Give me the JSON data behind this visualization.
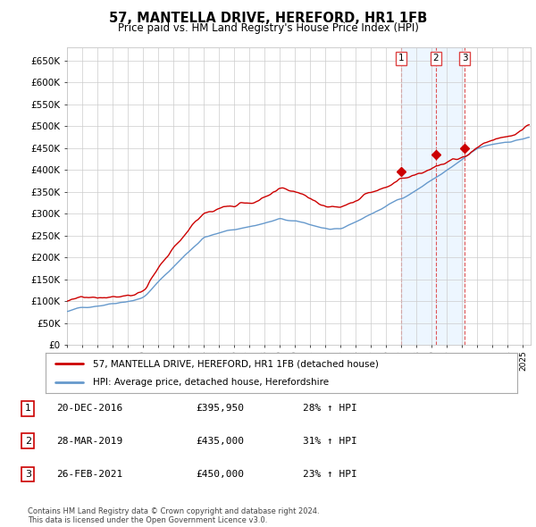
{
  "title": "57, MANTELLA DRIVE, HEREFORD, HR1 1FB",
  "subtitle": "Price paid vs. HM Land Registry's House Price Index (HPI)",
  "ylabel_ticks": [
    "£0",
    "£50K",
    "£100K",
    "£150K",
    "£200K",
    "£250K",
    "£300K",
    "£350K",
    "£400K",
    "£450K",
    "£500K",
    "£550K",
    "£600K",
    "£650K"
  ],
  "ytick_values": [
    0,
    50000,
    100000,
    150000,
    200000,
    250000,
    300000,
    350000,
    400000,
    450000,
    500000,
    550000,
    600000,
    650000
  ],
  "ylim": [
    0,
    680000
  ],
  "xlim_start": 1995.0,
  "xlim_end": 2025.5,
  "sale_dates": [
    2016.97,
    2019.25,
    2021.16
  ],
  "sale_prices": [
    395950,
    435000,
    450000
  ],
  "sale_labels": [
    "1",
    "2",
    "3"
  ],
  "red_color": "#cc0000",
  "blue_color": "#6699cc",
  "blue_fill_color": "#ddeeff",
  "dashed_color": "#dd4444",
  "legend_label_red": "57, MANTELLA DRIVE, HEREFORD, HR1 1FB (detached house)",
  "legend_label_blue": "HPI: Average price, detached house, Herefordshire",
  "table_entries": [
    {
      "num": "1",
      "date": "20-DEC-2016",
      "price": "£395,950",
      "change": "28% ↑ HPI"
    },
    {
      "num": "2",
      "date": "28-MAR-2019",
      "price": "£435,000",
      "change": "31% ↑ HPI"
    },
    {
      "num": "3",
      "date": "26-FEB-2021",
      "price": "£450,000",
      "change": "23% ↑ HPI"
    }
  ],
  "footer": "Contains HM Land Registry data © Crown copyright and database right 2024.\nThis data is licensed under the Open Government Licence v3.0.",
  "background_color": "#ffffff",
  "plot_bg_color": "#ffffff",
  "grid_color": "#cccccc"
}
